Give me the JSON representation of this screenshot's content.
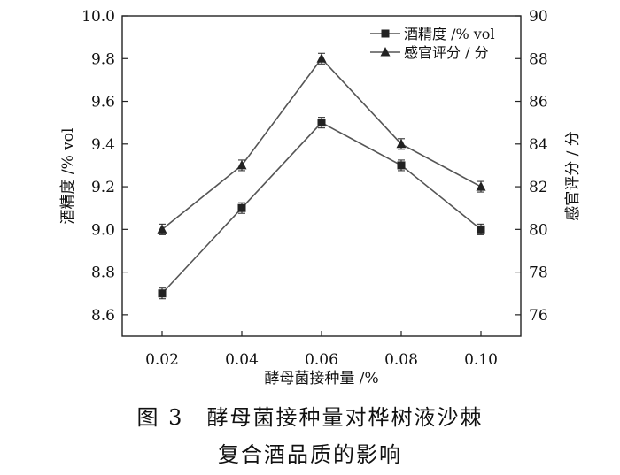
{
  "chart_data": {
    "type": "line",
    "x": [
      "0.02",
      "0.04",
      "0.06",
      "0.08",
      "0.10"
    ],
    "xlabel": "酵母菌接种量 /%",
    "ylabel_left": "酒精度 /% vol",
    "ylabel_right": "感官评分 / 分",
    "ylim_left": [
      8.5,
      10.0
    ],
    "yticks_left": [
      "8.6",
      "8.8",
      "9.0",
      "9.2",
      "9.4",
      "9.6",
      "9.8",
      "10.0"
    ],
    "ylim_right": [
      75,
      90
    ],
    "yticks_right": [
      "76",
      "78",
      "80",
      "82",
      "84",
      "86",
      "88",
      "90"
    ],
    "series": [
      {
        "name": "酒精度 /% vol",
        "axis": "left",
        "marker": "square",
        "values": [
          8.7,
          9.1,
          9.5,
          9.3,
          9.0
        ]
      },
      {
        "name": "感官评分 / 分",
        "axis": "right",
        "marker": "triangle",
        "values": [
          80,
          83,
          88,
          84,
          82
        ]
      }
    ],
    "error_bars": true,
    "legend": "top-right",
    "grid": false
  },
  "caption": {
    "line1": "图 3　酵母菌接种量对桦树液沙棘",
    "line2": "复合酒品质的影响"
  }
}
